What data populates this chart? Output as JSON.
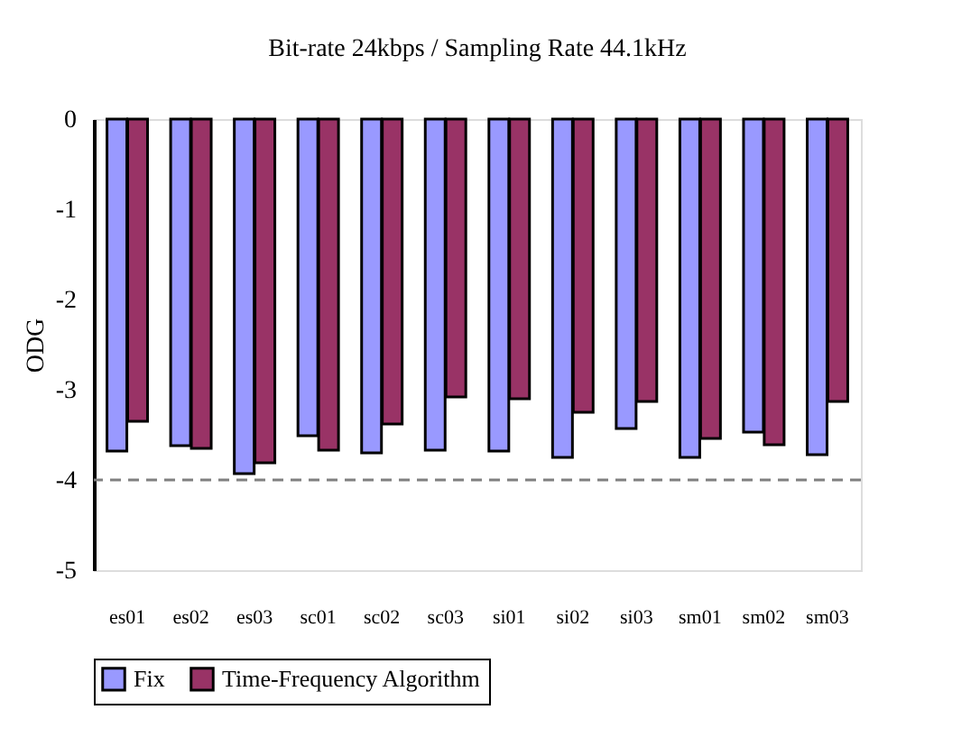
{
  "chart_data": {
    "type": "bar",
    "title": "Bit-rate 24kbps / Sampling Rate 44.1kHz",
    "ylabel": "ODG",
    "categories": [
      "es01",
      "es02",
      "es03",
      "sc01",
      "sc02",
      "sc03",
      "si01",
      "si02",
      "si03",
      "sm01",
      "sm02",
      "sm03"
    ],
    "series": [
      {
        "name": "Fix",
        "color": "#9999ff",
        "values": [
          -3.68,
          -3.62,
          -3.93,
          -3.51,
          -3.7,
          -3.67,
          -3.68,
          -3.75,
          -3.43,
          -3.75,
          -3.47,
          -3.72
        ]
      },
      {
        "name": "Time-Frequency Algorithm",
        "color": "#993366",
        "values": [
          -3.35,
          -3.65,
          -3.81,
          -3.67,
          -3.38,
          -3.08,
          -3.1,
          -3.25,
          -3.13,
          -3.54,
          -3.61,
          -3.13
        ]
      }
    ],
    "ylim": [
      -5,
      0
    ],
    "yticks": [
      0,
      -1,
      -2,
      -3,
      -4,
      -5
    ],
    "ref_lines": [
      {
        "axis": "y",
        "value": -4,
        "line_style": "dashed",
        "color": "#808080"
      }
    ],
    "grid": false,
    "legend": "bottom"
  }
}
